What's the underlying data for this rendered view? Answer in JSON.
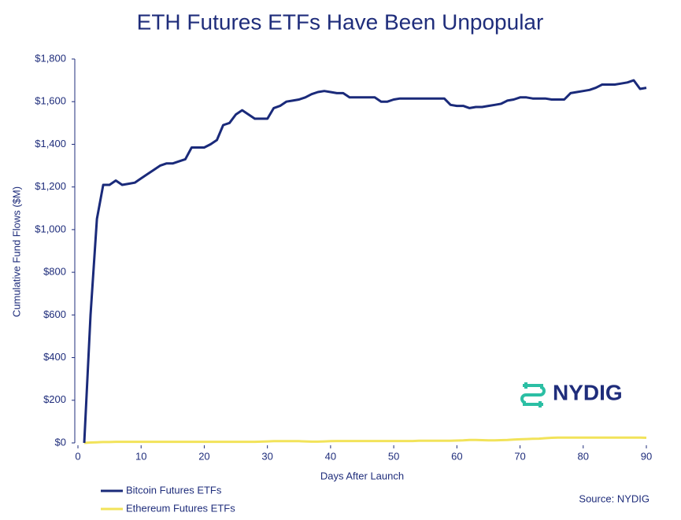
{
  "chart_data": {
    "type": "line",
    "title": "ETH Futures ETFs Have Been Unpopular",
    "ylabel": "Cumulative Fund Flows ($M)",
    "xlabel": "Days After Launch",
    "source": "Source: NYDIG",
    "logo": "NYDIG",
    "xlim": [
      0,
      90
    ],
    "xticks": [
      0,
      10,
      20,
      30,
      40,
      50,
      60,
      70,
      80,
      90
    ],
    "ylim": [
      0,
      1800
    ],
    "yticks": [
      {
        "value": 0,
        "label": "$0"
      },
      {
        "value": 200,
        "label": "$200"
      },
      {
        "value": 400,
        "label": "$400"
      },
      {
        "value": 600,
        "label": "$600"
      },
      {
        "value": 800,
        "label": "$800"
      },
      {
        "value": 1000,
        "label": "$1,000"
      },
      {
        "value": 1200,
        "label": "$1,200"
      },
      {
        "value": 1400,
        "label": "$1,400"
      },
      {
        "value": 1600,
        "label": "$1,600"
      },
      {
        "value": 1800,
        "label": "$1,800"
      }
    ],
    "grid": false,
    "x": [
      1,
      2,
      3,
      4,
      5,
      6,
      7,
      8,
      9,
      10,
      11,
      12,
      13,
      14,
      15,
      16,
      17,
      18,
      19,
      20,
      21,
      22,
      23,
      24,
      25,
      26,
      27,
      28,
      29,
      30,
      31,
      32,
      33,
      34,
      35,
      36,
      37,
      38,
      39,
      40,
      41,
      42,
      43,
      44,
      45,
      46,
      47,
      48,
      49,
      50,
      51,
      52,
      53,
      54,
      55,
      56,
      57,
      58,
      59,
      60,
      61,
      62,
      63,
      64,
      65,
      66,
      67,
      68,
      69,
      70,
      71,
      72,
      73,
      74,
      75,
      76,
      77,
      78,
      79,
      80,
      81,
      82,
      83,
      84,
      85,
      86,
      87,
      88,
      89,
      90
    ],
    "series": [
      {
        "name": "Bitcoin Futures ETFs",
        "color": "#1a2a7a",
        "values": [
          0,
          600,
          1050,
          1210,
          1210,
          1230,
          1210,
          1215,
          1220,
          1240,
          1260,
          1280,
          1300,
          1310,
          1310,
          1320,
          1330,
          1385,
          1385,
          1385,
          1400,
          1420,
          1490,
          1500,
          1540,
          1560,
          1540,
          1520,
          1520,
          1520,
          1570,
          1580,
          1600,
          1605,
          1610,
          1620,
          1635,
          1645,
          1650,
          1645,
          1640,
          1640,
          1620,
          1620,
          1620,
          1620,
          1620,
          1600,
          1600,
          1610,
          1615,
          1615,
          1615,
          1615,
          1615,
          1615,
          1615,
          1615,
          1585,
          1580,
          1580,
          1570,
          1575,
          1575,
          1580,
          1585,
          1590,
          1605,
          1610,
          1620,
          1620,
          1615,
          1615,
          1615,
          1610,
          1610,
          1610,
          1640,
          1645,
          1650,
          1655,
          1665,
          1680,
          1680,
          1680,
          1685,
          1690,
          1700,
          1660,
          1665
        ]
      },
      {
        "name": "Ethereum Futures ETFs",
        "color": "#f2e35a",
        "values": [
          0,
          2,
          3,
          4,
          4,
          5,
          5,
          5,
          5,
          5,
          5,
          5,
          5,
          5,
          5,
          5,
          5,
          5,
          5,
          5,
          5,
          5,
          5,
          5,
          5,
          5,
          5,
          5,
          6,
          7,
          8,
          8,
          8,
          8,
          8,
          7,
          6,
          6,
          7,
          8,
          9,
          9,
          9,
          9,
          9,
          9,
          9,
          9,
          9,
          9,
          9,
          9,
          9,
          10,
          10,
          10,
          10,
          10,
          10,
          11,
          12,
          14,
          14,
          13,
          12,
          12,
          13,
          14,
          16,
          17,
          18,
          19,
          20,
          22,
          24,
          25,
          25,
          25,
          25,
          25,
          25,
          25,
          25,
          25,
          25,
          25,
          25,
          25,
          25,
          24
        ]
      }
    ]
  }
}
